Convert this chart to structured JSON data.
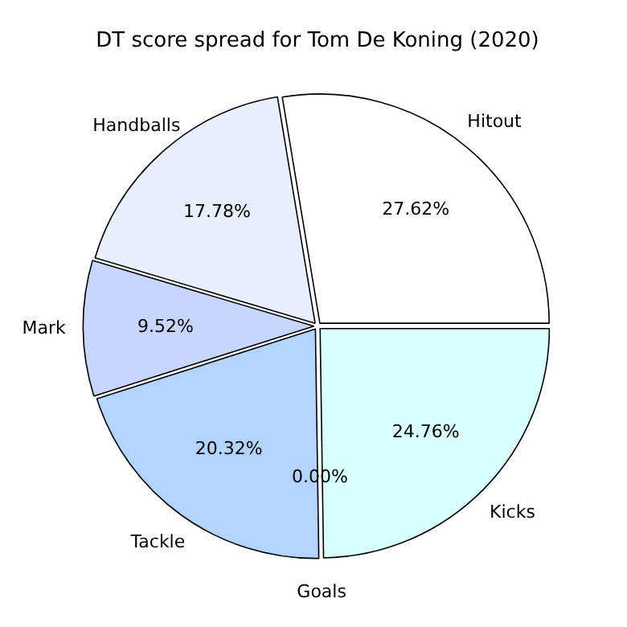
{
  "chart_data": {
    "type": "pie",
    "title": "DT score spread for Tom De Koning (2020)",
    "categories": [
      "Hitout",
      "Kicks",
      "Goals",
      "Tackle",
      "Mark",
      "Handballs"
    ],
    "values": [
      27.62,
      24.76,
      0.0,
      20.32,
      9.52,
      17.78
    ],
    "colors": [
      "#ffffff",
      "#d9ffff",
      "#cce0ff",
      "#b3d4ff",
      "#c6d6ff",
      "#e8f0ff"
    ],
    "value_labels": [
      "27.62%",
      "24.76%",
      "0.00%",
      "20.32%",
      "9.52%",
      "17.78%"
    ],
    "legend": false
  }
}
